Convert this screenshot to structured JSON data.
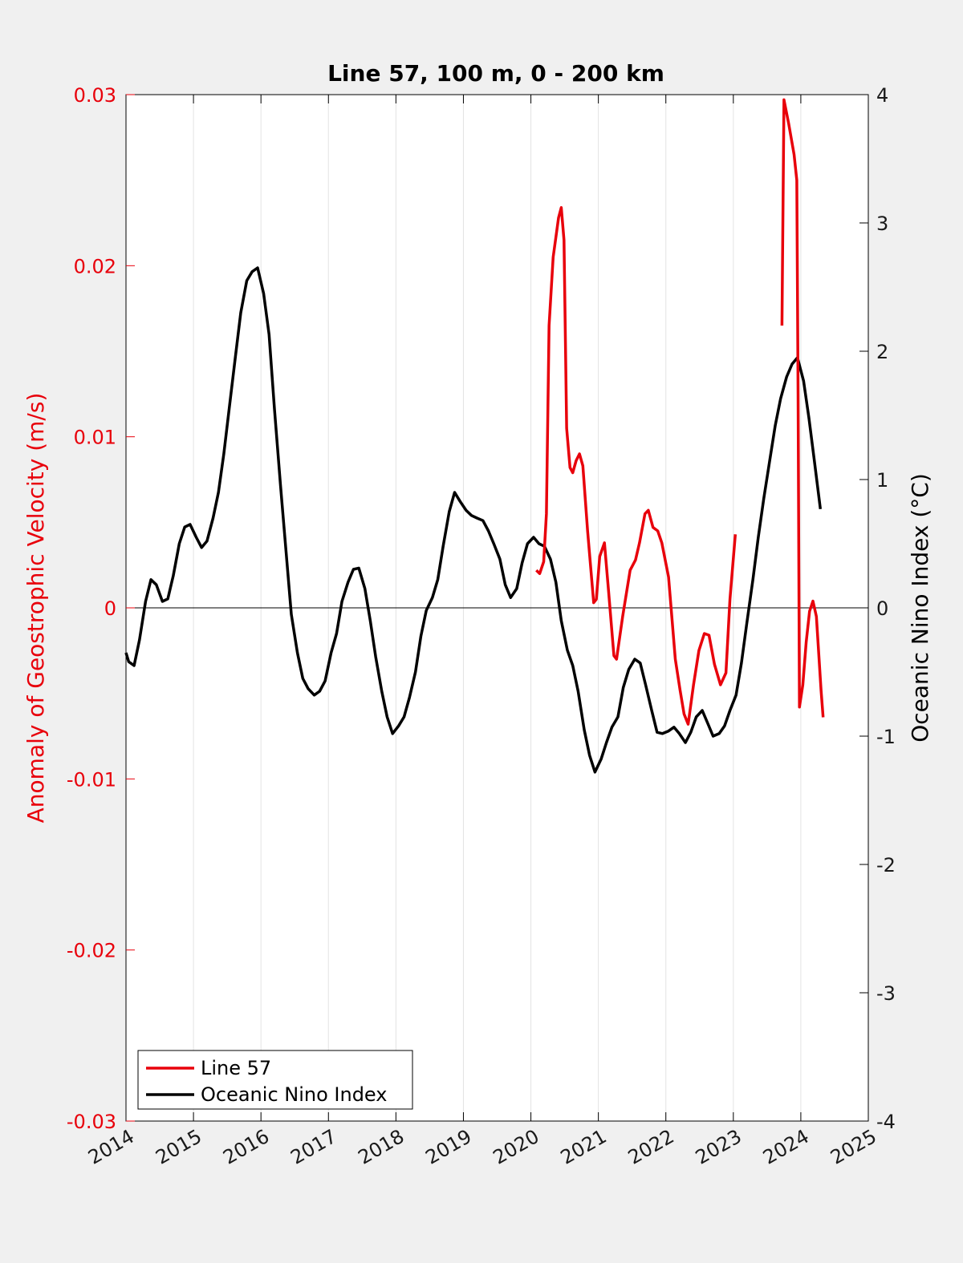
{
  "chart_data": {
    "type": "line",
    "title": "Line 57, 100 m, 0 - 200 km",
    "xlabel": "",
    "ylabel_left": "Anomaly of Geostrophic Velocity (m/s)",
    "ylabel_right": "Oceanic Nino Index (°C)",
    "xlim": [
      2014,
      2025
    ],
    "ylim_left": [
      -0.03,
      0.03
    ],
    "ylim_right": [
      -4,
      4
    ],
    "x_ticks": [
      "2014",
      "2015",
      "2016",
      "2017",
      "2018",
      "2019",
      "2020",
      "2021",
      "2022",
      "2023",
      "2024",
      "2025"
    ],
    "y_left_ticks": [
      "-0.03",
      "-0.02",
      "-0.01",
      "0",
      "0.01",
      "0.02",
      "0.03"
    ],
    "y_right_ticks": [
      "-4",
      "-3",
      "-2",
      "-1",
      "0",
      "1",
      "2",
      "3",
      "4"
    ],
    "grid": "vertical",
    "legend_position": "bottom-left",
    "colors": {
      "line57": "#e8000b",
      "oni": "#000000",
      "left_axis": "#e8000b",
      "right_axis": "#000000"
    },
    "series": [
      {
        "name": "Line 57",
        "axis": "left",
        "segments": [
          [
            [
              2020.08,
              0.0022
            ],
            [
              2020.13,
              0.002
            ],
            [
              2020.19,
              0.0027
            ],
            [
              2020.23,
              0.0055
            ],
            [
              2020.27,
              0.0165
            ],
            [
              2020.33,
              0.0205
            ],
            [
              2020.41,
              0.0228
            ],
            [
              2020.45,
              0.0234
            ],
            [
              2020.49,
              0.0215
            ],
            [
              2020.53,
              0.0105
            ],
            [
              2020.58,
              0.0082
            ],
            [
              2020.62,
              0.0079
            ],
            [
              2020.67,
              0.0086
            ],
            [
              2020.72,
              0.009
            ],
            [
              2020.77,
              0.0083
            ],
            [
              2020.84,
              0.0045
            ],
            [
              2020.93,
              0.0003
            ],
            [
              2020.97,
              0.0005
            ],
            [
              2021.02,
              0.003
            ],
            [
              2021.09,
              0.0038
            ],
            [
              2021.15,
              0.001
            ],
            [
              2021.23,
              -0.0028
            ],
            [
              2021.27,
              -0.003
            ],
            [
              2021.36,
              -0.0005
            ],
            [
              2021.47,
              0.0022
            ],
            [
              2021.55,
              0.0028
            ],
            [
              2021.61,
              0.0038
            ],
            [
              2021.69,
              0.0055
            ],
            [
              2021.74,
              0.0057
            ],
            [
              2021.81,
              0.0047
            ],
            [
              2021.88,
              0.0045
            ],
            [
              2021.94,
              0.0038
            ],
            [
              2022.04,
              0.0018
            ],
            [
              2022.14,
              -0.003
            ],
            [
              2022.21,
              -0.0048
            ],
            [
              2022.27,
              -0.0062
            ],
            [
              2022.33,
              -0.0068
            ],
            [
              2022.41,
              -0.0045
            ],
            [
              2022.49,
              -0.0025
            ],
            [
              2022.57,
              -0.0015
            ],
            [
              2022.64,
              -0.0016
            ],
            [
              2022.72,
              -0.0033
            ],
            [
              2022.81,
              -0.0045
            ],
            [
              2022.89,
              -0.0038
            ],
            [
              2022.95,
              0.0005
            ],
            [
              2023.03,
              0.0043
            ]
          ],
          [
            [
              2023.72,
              0.0165
            ],
            [
              2023.75,
              0.0297
            ],
            [
              2023.82,
              0.0283
            ],
            [
              2023.9,
              0.0265
            ],
            [
              2023.94,
              0.025
            ],
            [
              2023.96,
              0.0125
            ],
            [
              2023.98,
              -0.0058
            ],
            [
              2024.03,
              -0.0045
            ],
            [
              2024.08,
              -0.002
            ],
            [
              2024.13,
              -0.0002
            ],
            [
              2024.18,
              0.0004
            ],
            [
              2024.23,
              -0.0005
            ],
            [
              2024.3,
              -0.0048
            ],
            [
              2024.33,
              -0.0064
            ]
          ]
        ]
      },
      {
        "name": "Oceanic Nino Index",
        "axis": "right",
        "points": [
          [
            2014.0,
            -0.35
          ],
          [
            2014.04,
            -0.42
          ],
          [
            2014.12,
            -0.45
          ],
          [
            2014.2,
            -0.25
          ],
          [
            2014.29,
            0.05
          ],
          [
            2014.37,
            0.22
          ],
          [
            2014.45,
            0.18
          ],
          [
            2014.54,
            0.05
          ],
          [
            2014.62,
            0.07
          ],
          [
            2014.7,
            0.25
          ],
          [
            2014.79,
            0.5
          ],
          [
            2014.87,
            0.63
          ],
          [
            2014.95,
            0.65
          ],
          [
            2015.04,
            0.55
          ],
          [
            2015.12,
            0.47
          ],
          [
            2015.2,
            0.52
          ],
          [
            2015.29,
            0.7
          ],
          [
            2015.37,
            0.9
          ],
          [
            2015.45,
            1.2
          ],
          [
            2015.54,
            1.6
          ],
          [
            2015.62,
            1.95
          ],
          [
            2015.7,
            2.3
          ],
          [
            2015.79,
            2.55
          ],
          [
            2015.87,
            2.62
          ],
          [
            2015.95,
            2.65
          ],
          [
            2016.04,
            2.45
          ],
          [
            2016.12,
            2.13
          ],
          [
            2016.2,
            1.55
          ],
          [
            2016.29,
            0.95
          ],
          [
            2016.37,
            0.45
          ],
          [
            2016.45,
            -0.05
          ],
          [
            2016.54,
            -0.35
          ],
          [
            2016.62,
            -0.55
          ],
          [
            2016.7,
            -0.63
          ],
          [
            2016.79,
            -0.68
          ],
          [
            2016.87,
            -0.65
          ],
          [
            2016.95,
            -0.57
          ],
          [
            2017.04,
            -0.35
          ],
          [
            2017.12,
            -0.2
          ],
          [
            2017.2,
            0.05
          ],
          [
            2017.29,
            0.2
          ],
          [
            2017.37,
            0.3
          ],
          [
            2017.45,
            0.31
          ],
          [
            2017.54,
            0.15
          ],
          [
            2017.62,
            -0.1
          ],
          [
            2017.7,
            -0.38
          ],
          [
            2017.79,
            -0.65
          ],
          [
            2017.87,
            -0.85
          ],
          [
            2017.95,
            -0.98
          ],
          [
            2018.04,
            -0.92
          ],
          [
            2018.12,
            -0.85
          ],
          [
            2018.2,
            -0.7
          ],
          [
            2018.29,
            -0.5
          ],
          [
            2018.37,
            -0.22
          ],
          [
            2018.45,
            -0.02
          ],
          [
            2018.54,
            0.08
          ],
          [
            2018.62,
            0.22
          ],
          [
            2018.7,
            0.48
          ],
          [
            2018.79,
            0.75
          ],
          [
            2018.87,
            0.9
          ],
          [
            2018.95,
            0.83
          ],
          [
            2019.04,
            0.76
          ],
          [
            2019.12,
            0.72
          ],
          [
            2019.2,
            0.7
          ],
          [
            2019.29,
            0.68
          ],
          [
            2019.37,
            0.6
          ],
          [
            2019.45,
            0.5
          ],
          [
            2019.54,
            0.38
          ],
          [
            2019.62,
            0.18
          ],
          [
            2019.7,
            0.08
          ],
          [
            2019.79,
            0.15
          ],
          [
            2019.87,
            0.35
          ],
          [
            2019.95,
            0.5
          ],
          [
            2020.04,
            0.55
          ],
          [
            2020.12,
            0.5
          ],
          [
            2020.2,
            0.48
          ],
          [
            2020.29,
            0.38
          ],
          [
            2020.37,
            0.2
          ],
          [
            2020.45,
            -0.1
          ],
          [
            2020.54,
            -0.33
          ],
          [
            2020.62,
            -0.45
          ],
          [
            2020.7,
            -0.65
          ],
          [
            2020.79,
            -0.95
          ],
          [
            2020.87,
            -1.15
          ],
          [
            2020.95,
            -1.28
          ],
          [
            2021.04,
            -1.18
          ],
          [
            2021.12,
            -1.05
          ],
          [
            2021.2,
            -0.93
          ],
          [
            2021.29,
            -0.85
          ],
          [
            2021.37,
            -0.62
          ],
          [
            2021.45,
            -0.48
          ],
          [
            2021.54,
            -0.4
          ],
          [
            2021.62,
            -0.43
          ],
          [
            2021.7,
            -0.6
          ],
          [
            2021.79,
            -0.8
          ],
          [
            2021.87,
            -0.97
          ],
          [
            2021.95,
            -0.98
          ],
          [
            2022.04,
            -0.96
          ],
          [
            2022.12,
            -0.93
          ],
          [
            2022.2,
            -0.98
          ],
          [
            2022.29,
            -1.05
          ],
          [
            2022.37,
            -0.97
          ],
          [
            2022.45,
            -0.85
          ],
          [
            2022.54,
            -0.8
          ],
          [
            2022.62,
            -0.9
          ],
          [
            2022.7,
            -1.0
          ],
          [
            2022.79,
            -0.98
          ],
          [
            2022.87,
            -0.92
          ],
          [
            2022.95,
            -0.8
          ],
          [
            2023.04,
            -0.68
          ],
          [
            2023.12,
            -0.43
          ],
          [
            2023.2,
            -0.12
          ],
          [
            2023.29,
            0.22
          ],
          [
            2023.37,
            0.55
          ],
          [
            2023.45,
            0.85
          ],
          [
            2023.54,
            1.15
          ],
          [
            2023.62,
            1.42
          ],
          [
            2023.7,
            1.63
          ],
          [
            2023.79,
            1.8
          ],
          [
            2023.87,
            1.9
          ],
          [
            2023.95,
            1.95
          ],
          [
            2024.04,
            1.77
          ],
          [
            2024.12,
            1.48
          ],
          [
            2024.2,
            1.15
          ],
          [
            2024.29,
            0.77
          ]
        ]
      }
    ]
  }
}
